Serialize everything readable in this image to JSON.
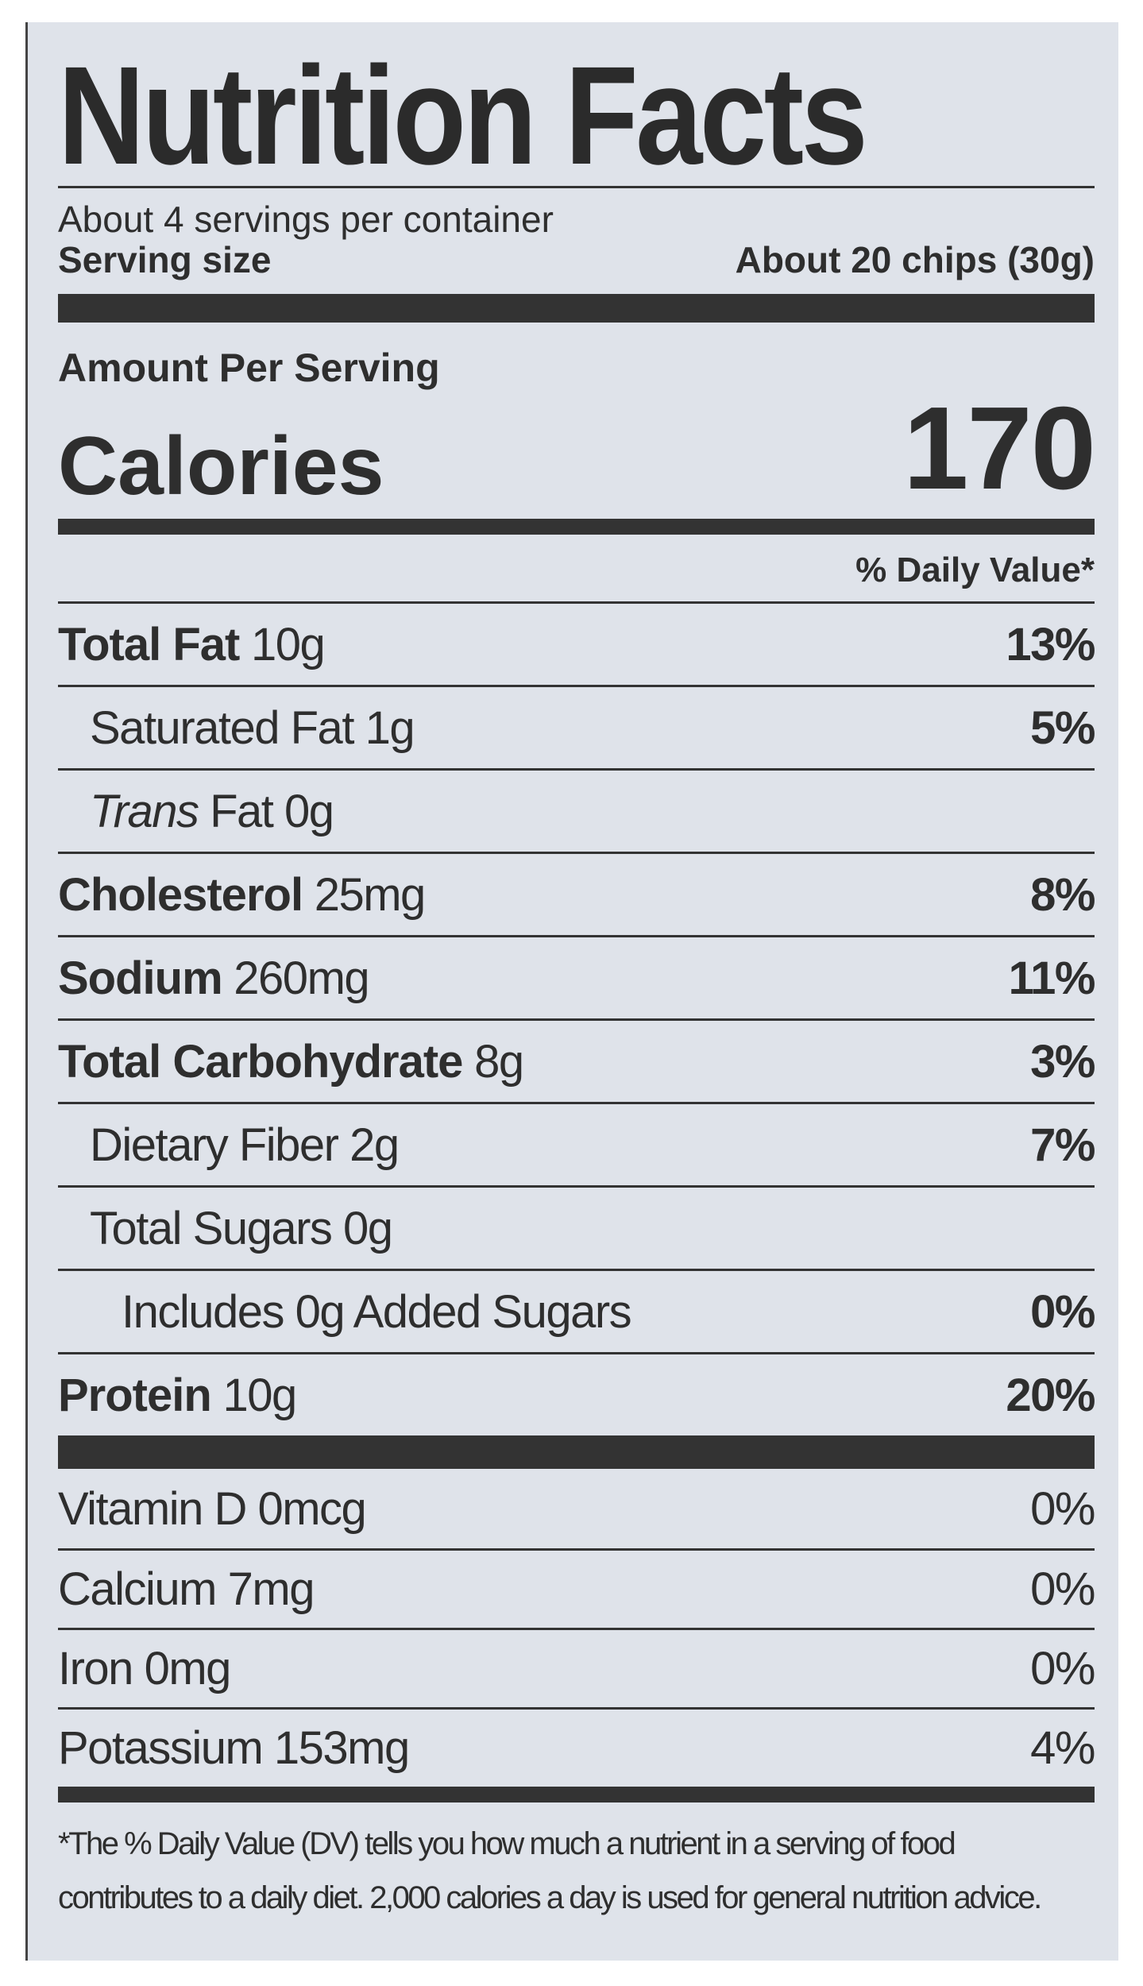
{
  "title": "Nutrition Facts",
  "servings_per_container": "About 4 servings per container",
  "serving_size_label": "Serving size",
  "serving_size_value": "About 20 chips (30g)",
  "amount_per_serving": "Amount Per Serving",
  "calories_label": "Calories",
  "calories_value": "170",
  "daily_value_header": "% Daily Value*",
  "nutrients": [
    {
      "name": "Total Fat",
      "amount": "10g",
      "dv": "13%"
    },
    {
      "name": "Saturated Fat",
      "amount": "1g",
      "dv": "5%"
    },
    {
      "name_italic": "Trans",
      "name": "Fat",
      "amount": "0g",
      "dv": ""
    },
    {
      "name": "Cholesterol",
      "amount": "25mg",
      "dv": "8%"
    },
    {
      "name": "Sodium",
      "amount": "260mg",
      "dv": "11%"
    },
    {
      "name": "Total Carbohydrate",
      "amount": "8g",
      "dv": "3%"
    },
    {
      "name": "Dietary Fiber",
      "amount": "2g",
      "dv": "7%"
    },
    {
      "name": "Total Sugars",
      "amount": "0g",
      "dv": ""
    },
    {
      "name": "Includes 0g Added Sugars",
      "amount": "",
      "dv": "0%"
    },
    {
      "name": "Protein",
      "amount": "10g",
      "dv": "20%"
    }
  ],
  "vitamins": [
    {
      "name": "Vitamin D",
      "amount": "0mcg",
      "dv": "0%"
    },
    {
      "name": "Calcium",
      "amount": "7mg",
      "dv": "0%"
    },
    {
      "name": "Iron",
      "amount": "0mg",
      "dv": "0%"
    },
    {
      "name": "Potassium",
      "amount": "153mg",
      "dv": "4%"
    }
  ],
  "footnote_line1": "*The % Daily Value (DV) tells you how much a nutrient in a serving of food",
  "footnote_line2": "contributes to a daily diet. 2,000 calories a day is used for general nutrition advice.",
  "colors": {
    "label_background": "#dfe3ea",
    "ink": "#2e2e2e"
  }
}
